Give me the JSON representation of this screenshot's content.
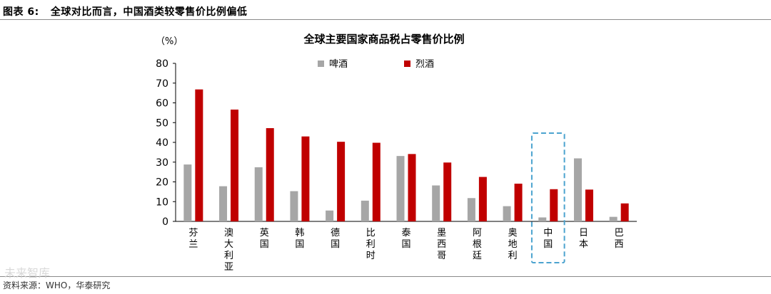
{
  "figure": {
    "label": "图表 6:",
    "title": "全球对比而言，中国酒类较零售价比例偏低",
    "source": "资料来源：WHO，华泰研究",
    "watermark": "未来智库"
  },
  "chart_data": {
    "type": "bar",
    "title": "全球主要国家商品税占零售价比例",
    "ylabel": "（%）",
    "ylim": [
      0,
      80
    ],
    "yticks": [
      0,
      10,
      20,
      30,
      40,
      50,
      60,
      70,
      80
    ],
    "categories": [
      "芬兰",
      "澳大利亚",
      "英国",
      "韩国",
      "德国",
      "比利时",
      "泰国",
      "墨西哥",
      "阿根廷",
      "奥地利",
      "中国",
      "日本",
      "巴西"
    ],
    "series": [
      {
        "name": "啤酒",
        "color": "#a6a6a6",
        "values": [
          28.8,
          17.8,
          27.4,
          15.3,
          5.5,
          10.5,
          33.1,
          18.2,
          11.8,
          7.7,
          2.0,
          31.9,
          2.3
        ]
      },
      {
        "name": "烈酒",
        "color": "#c00000",
        "values": [
          66.8,
          56.6,
          47.2,
          43.0,
          40.3,
          39.8,
          34.1,
          29.8,
          22.5,
          19.1,
          16.3,
          16.1,
          9.1
        ]
      }
    ],
    "highlight": {
      "category": "中国",
      "color": "#4ba3cf"
    },
    "legend_position": "top-center",
    "grid": false
  }
}
